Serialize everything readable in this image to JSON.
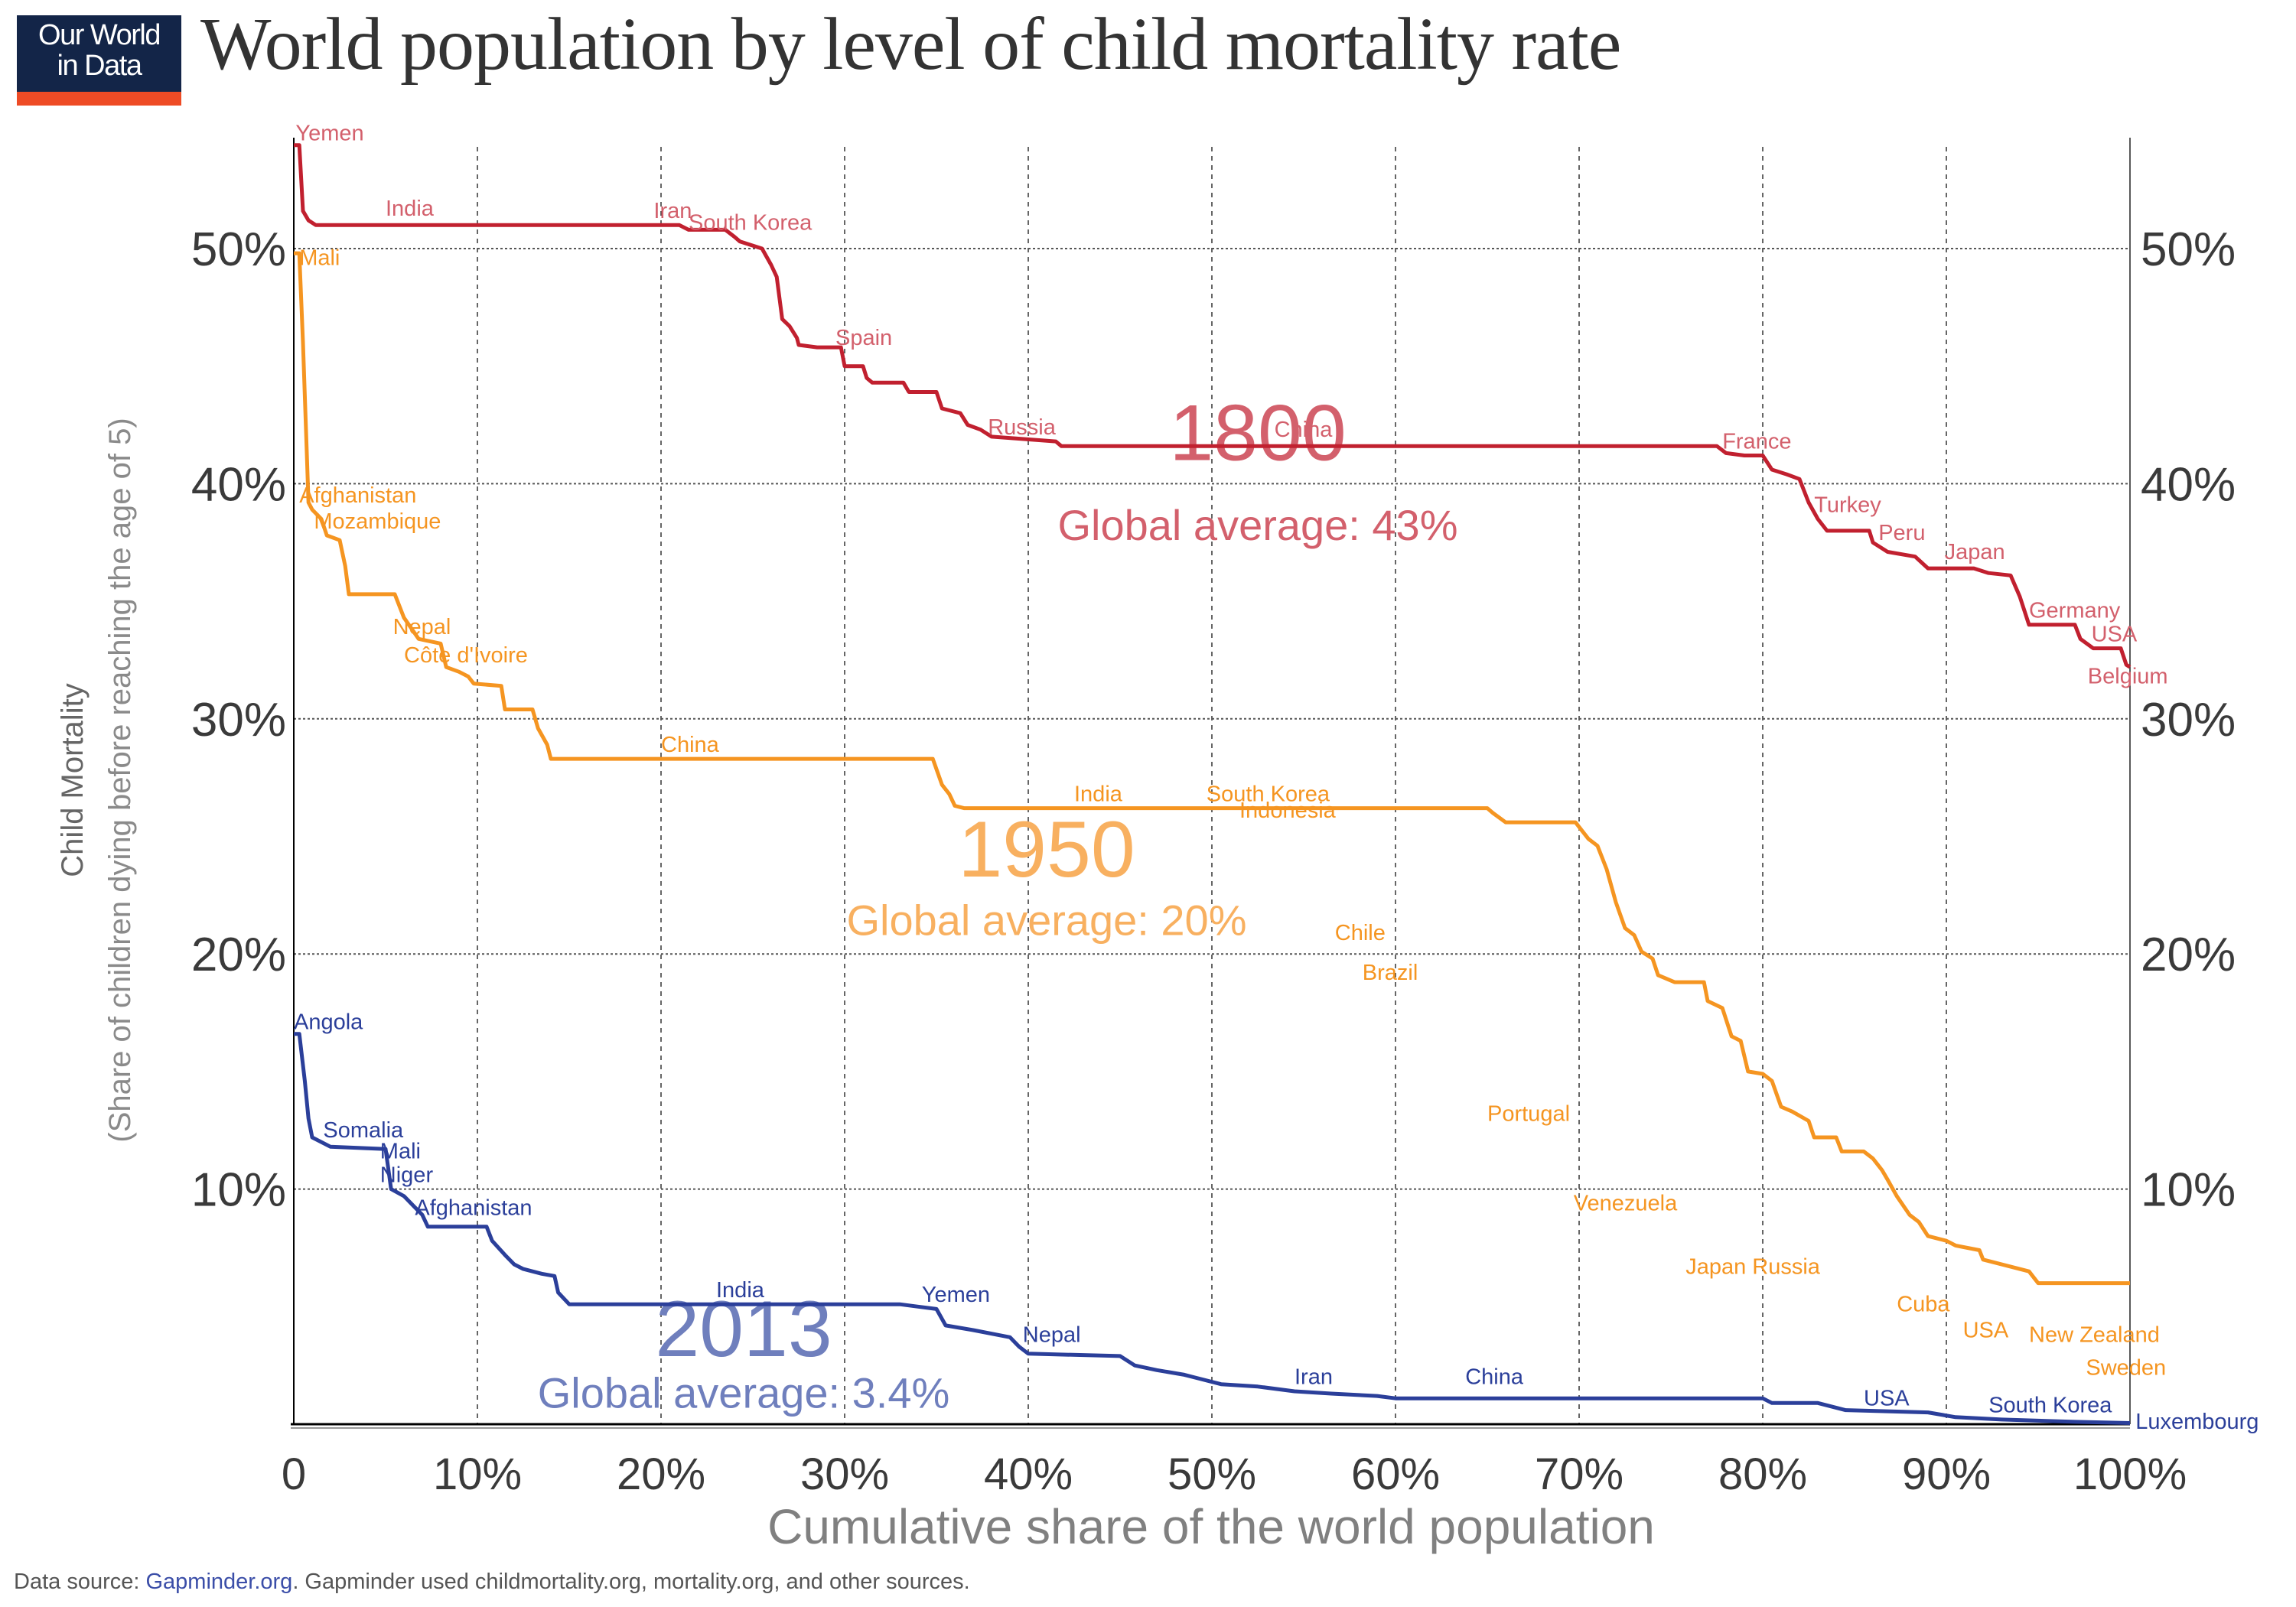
{
  "logo": {
    "line1": "Our World",
    "line2": "in Data"
  },
  "title": "World population by level of child mortality rate",
  "footer": {
    "prefix": "Data source: ",
    "link": "Gapminder.org",
    "suffix": ". Gapminder used childmortality.org, mortality.org, and other sources."
  },
  "colors": {
    "y1800": "#c1202f",
    "y1800_label": "#d3606c",
    "y1950": "#f59521",
    "y1950_label": "#f8b060",
    "y2013": "#2b3f9a",
    "y2013_label": "#6f7fbd",
    "grid": "#555555",
    "axis_text": "#3a3a3a",
    "axis_title": "#808080",
    "logo_bg": "#132548",
    "logo_bar": "#ee4b25"
  },
  "chart_data": {
    "type": "line",
    "title": "World population by level of child mortality rate",
    "xlabel": "Cumulative share of the world population",
    "ylabel": "Child Mortality",
    "ylabel_sub": "(Share of children dying before reaching the age of 5)",
    "xlim": [
      0,
      100
    ],
    "ylim": [
      0,
      55
    ],
    "x_ticks": [
      0,
      10,
      20,
      30,
      40,
      50,
      60,
      70,
      80,
      90,
      100
    ],
    "x_tick_labels": [
      "0",
      "10%",
      "20%",
      "30%",
      "40%",
      "50%",
      "60%",
      "70%",
      "80%",
      "90%",
      "100%"
    ],
    "y_ticks": [
      10,
      20,
      30,
      40,
      50
    ],
    "y_tick_labels": [
      "10%",
      "20%",
      "30%",
      "40%",
      "50%"
    ],
    "grid": true,
    "series": [
      {
        "name": "1800",
        "color_key": "y1800",
        "annotation": {
          "year": "1800",
          "avg": "Global average: 43%",
          "year_at": [
            52.5,
            41.0
          ],
          "avg_at": [
            52.5,
            37.6
          ]
        },
        "points": [
          [
            0,
            54.4
          ],
          [
            0.3,
            54.4
          ],
          [
            0.5,
            51.6
          ],
          [
            0.8,
            51.2
          ],
          [
            1.2,
            51.0
          ],
          [
            21.0,
            51.0
          ],
          [
            21.5,
            50.8
          ],
          [
            23.5,
            50.8
          ],
          [
            24.0,
            50.5
          ],
          [
            24.3,
            50.3
          ],
          [
            25.5,
            50.0
          ],
          [
            26.0,
            49.3
          ],
          [
            26.3,
            48.8
          ],
          [
            26.6,
            47.0
          ],
          [
            27.0,
            46.7
          ],
          [
            27.4,
            46.2
          ],
          [
            27.5,
            45.9
          ],
          [
            28.5,
            45.8
          ],
          [
            29.8,
            45.8
          ],
          [
            30.0,
            45.0
          ],
          [
            31.0,
            45.0
          ],
          [
            31.2,
            44.5
          ],
          [
            31.5,
            44.3
          ],
          [
            33.2,
            44.3
          ],
          [
            33.5,
            43.9
          ],
          [
            35.0,
            43.9
          ],
          [
            35.3,
            43.2
          ],
          [
            36.3,
            43.0
          ],
          [
            36.7,
            42.5
          ],
          [
            37.4,
            42.3
          ],
          [
            38.0,
            42.0
          ],
          [
            41.5,
            41.8
          ],
          [
            41.8,
            41.6
          ],
          [
            77.5,
            41.6
          ],
          [
            78.0,
            41.3
          ],
          [
            79.0,
            41.2
          ],
          [
            80.0,
            41.2
          ],
          [
            80.5,
            40.6
          ],
          [
            81.3,
            40.4
          ],
          [
            82.0,
            40.2
          ],
          [
            82.5,
            39.2
          ],
          [
            83.0,
            38.5
          ],
          [
            83.5,
            38.0
          ],
          [
            85.8,
            38.0
          ],
          [
            86.0,
            37.5
          ],
          [
            86.8,
            37.1
          ],
          [
            88.3,
            36.9
          ],
          [
            89.0,
            36.4
          ],
          [
            91.5,
            36.4
          ],
          [
            92.3,
            36.2
          ],
          [
            93.5,
            36.1
          ],
          [
            94.0,
            35.2
          ],
          [
            94.5,
            34.0
          ],
          [
            97.0,
            34.0
          ],
          [
            97.3,
            33.4
          ],
          [
            98.0,
            33.0
          ],
          [
            99.5,
            33.0
          ],
          [
            99.8,
            32.3
          ],
          [
            100,
            32.2
          ]
        ],
        "labels": [
          {
            "text": "Yemen",
            "x": 0.1,
            "y": 54.6
          },
          {
            "text": "India",
            "x": 5.0,
            "y": 51.4
          },
          {
            "text": "Iran",
            "x": 19.6,
            "y": 51.3
          },
          {
            "text": "South Korea",
            "x": 21.5,
            "y": 50.8
          },
          {
            "text": "Spain",
            "x": 29.5,
            "y": 45.9
          },
          {
            "text": "Russia",
            "x": 37.8,
            "y": 42.1
          },
          {
            "text": "China",
            "x": 53.4,
            "y": 42.0
          },
          {
            "text": "France",
            "x": 77.8,
            "y": 41.5
          },
          {
            "text": "Turkey",
            "x": 82.8,
            "y": 38.8
          },
          {
            "text": "Peru",
            "x": 86.3,
            "y": 37.6
          },
          {
            "text": "Japan",
            "x": 89.9,
            "y": 36.8
          },
          {
            "text": "Germany",
            "x": 94.5,
            "y": 34.3
          },
          {
            "text": "USA",
            "x": 97.9,
            "y": 33.3
          },
          {
            "text": "Belgium",
            "x": 97.7,
            "y": 31.5
          }
        ]
      },
      {
        "name": "1950",
        "color_key": "y1950",
        "annotation": {
          "year": "1950",
          "avg": "Global average: 20%",
          "year_at": [
            41.0,
            23.3
          ],
          "avg_at": [
            41.0,
            20.8
          ]
        },
        "points": [
          [
            0,
            49.8
          ],
          [
            0.3,
            49.8
          ],
          [
            0.5,
            46.0
          ],
          [
            0.7,
            41.5
          ],
          [
            0.8,
            39.2
          ],
          [
            1.0,
            38.9
          ],
          [
            1.5,
            38.5
          ],
          [
            1.8,
            37.8
          ],
          [
            2.5,
            37.6
          ],
          [
            2.8,
            36.5
          ],
          [
            3.0,
            35.3
          ],
          [
            5.5,
            35.3
          ],
          [
            6.0,
            34.3
          ],
          [
            6.8,
            33.4
          ],
          [
            8.0,
            33.2
          ],
          [
            8.3,
            32.2
          ],
          [
            9.0,
            32.0
          ],
          [
            9.5,
            31.8
          ],
          [
            9.8,
            31.5
          ],
          [
            11.3,
            31.4
          ],
          [
            11.5,
            30.4
          ],
          [
            13.0,
            30.4
          ],
          [
            13.3,
            29.6
          ],
          [
            13.8,
            28.9
          ],
          [
            14.0,
            28.3
          ],
          [
            34.8,
            28.3
          ],
          [
            35.3,
            27.2
          ],
          [
            35.7,
            26.8
          ],
          [
            36.0,
            26.3
          ],
          [
            36.5,
            26.2
          ],
          [
            65.0,
            26.2
          ],
          [
            65.3,
            26.0
          ],
          [
            66.0,
            25.6
          ],
          [
            67.5,
            25.6
          ],
          [
            69.8,
            25.6
          ],
          [
            70.5,
            24.9
          ],
          [
            71.0,
            24.6
          ],
          [
            71.5,
            23.6
          ],
          [
            72.0,
            22.2
          ],
          [
            72.5,
            21.1
          ],
          [
            73.0,
            20.8
          ],
          [
            73.4,
            20.1
          ],
          [
            74.0,
            19.8
          ],
          [
            74.3,
            19.1
          ],
          [
            75.2,
            18.8
          ],
          [
            76.8,
            18.8
          ],
          [
            77.0,
            18.0
          ],
          [
            77.8,
            17.7
          ],
          [
            78.3,
            16.5
          ],
          [
            78.8,
            16.3
          ],
          [
            79.2,
            15.0
          ],
          [
            80.0,
            14.9
          ],
          [
            80.5,
            14.6
          ],
          [
            81.0,
            13.5
          ],
          [
            81.6,
            13.3
          ],
          [
            82.5,
            12.9
          ],
          [
            82.8,
            12.2
          ],
          [
            84.0,
            12.2
          ],
          [
            84.3,
            11.6
          ],
          [
            85.5,
            11.6
          ],
          [
            86.0,
            11.3
          ],
          [
            86.5,
            10.8
          ],
          [
            86.8,
            10.4
          ],
          [
            87.3,
            9.7
          ],
          [
            88.0,
            8.9
          ],
          [
            88.5,
            8.6
          ],
          [
            89.0,
            8.0
          ],
          [
            90.0,
            7.8
          ],
          [
            90.5,
            7.6
          ],
          [
            91.8,
            7.4
          ],
          [
            92.0,
            7.0
          ],
          [
            94.5,
            6.5
          ],
          [
            95.0,
            6.0
          ],
          [
            100.0,
            6.0
          ]
        ],
        "labels": [
          {
            "text": "Mali",
            "x": 0.3,
            "y": 49.3
          },
          {
            "text": "Afghanistan",
            "x": 0.3,
            "y": 39.2
          },
          {
            "text": "Mozambique",
            "x": 1.1,
            "y": 38.1
          },
          {
            "text": "Nepal",
            "x": 5.4,
            "y": 33.6
          },
          {
            "text": "Côte d'Ivoire",
            "x": 6.0,
            "y": 32.4
          },
          {
            "text": "China",
            "x": 20.0,
            "y": 28.6
          },
          {
            "text": "India",
            "x": 42.5,
            "y": 26.5
          },
          {
            "text": "South Korea",
            "x": 49.7,
            "y": 26.5
          },
          {
            "text": "Indonesia",
            "x": 51.5,
            "y": 25.8
          },
          {
            "text": "Chile",
            "x": 56.7,
            "y": 20.6
          },
          {
            "text": "Brazil",
            "x": 58.2,
            "y": 18.9
          },
          {
            "text": "Portugal",
            "x": 65.0,
            "y": 12.9
          },
          {
            "text": "Venezuela",
            "x": 69.7,
            "y": 9.1
          },
          {
            "text": "Japan Russia",
            "x": 75.8,
            "y": 6.4
          },
          {
            "text": "Cuba",
            "x": 87.3,
            "y": 4.8
          },
          {
            "text": "USA",
            "x": 90.9,
            "y": 3.7
          },
          {
            "text": "New Zealand",
            "x": 94.5,
            "y": 3.5
          },
          {
            "text": "Sweden",
            "x": 97.6,
            "y": 2.1
          }
        ]
      },
      {
        "name": "2013",
        "color_key": "y2013",
        "annotation": {
          "year": "2013",
          "avg": "Global average: 3.4%",
          "year_at": [
            24.5,
            2.9
          ],
          "avg_at": [
            24.5,
            0.7
          ]
        },
        "points": [
          [
            0,
            16.6
          ],
          [
            0.3,
            16.6
          ],
          [
            0.6,
            14.6
          ],
          [
            0.8,
            13.0
          ],
          [
            1.0,
            12.2
          ],
          [
            2.0,
            11.8
          ],
          [
            5.0,
            11.7
          ],
          [
            5.3,
            10.0
          ],
          [
            6.0,
            9.7
          ],
          [
            6.5,
            9.3
          ],
          [
            7.0,
            8.9
          ],
          [
            7.3,
            8.4
          ],
          [
            10.5,
            8.4
          ],
          [
            10.8,
            7.8
          ],
          [
            11.5,
            7.2
          ],
          [
            12.0,
            6.8
          ],
          [
            12.5,
            6.6
          ],
          [
            13.5,
            6.4
          ],
          [
            14.2,
            6.3
          ],
          [
            14.4,
            5.6
          ],
          [
            15.0,
            5.1
          ],
          [
            33.0,
            5.1
          ],
          [
            34.0,
            5.0
          ],
          [
            35.0,
            4.9
          ],
          [
            35.5,
            4.2
          ],
          [
            37.0,
            4.0
          ],
          [
            39.0,
            3.7
          ],
          [
            39.5,
            3.3
          ],
          [
            40.0,
            3.0
          ],
          [
            45.0,
            2.9
          ],
          [
            45.8,
            2.5
          ],
          [
            47.0,
            2.3
          ],
          [
            48.5,
            2.1
          ],
          [
            49.0,
            2.0
          ],
          [
            50.5,
            1.7
          ],
          [
            52.5,
            1.6
          ],
          [
            54.5,
            1.4
          ],
          [
            56.5,
            1.3
          ],
          [
            59.0,
            1.2
          ],
          [
            60.0,
            1.1
          ],
          [
            80.0,
            1.1
          ],
          [
            80.5,
            0.9
          ],
          [
            83.0,
            0.9
          ],
          [
            84.5,
            0.6
          ],
          [
            89.0,
            0.5
          ],
          [
            90.5,
            0.3
          ],
          [
            93.0,
            0.2
          ],
          [
            97.0,
            0.1
          ],
          [
            100.0,
            0.05
          ]
        ],
        "labels": [
          {
            "text": "Angola",
            "x": 0.0,
            "y": 16.8
          },
          {
            "text": "Somalia",
            "x": 1.6,
            "y": 12.2
          },
          {
            "text": "Mali",
            "x": 4.7,
            "y": 11.3
          },
          {
            "text": "Niger",
            "x": 4.7,
            "y": 10.3
          },
          {
            "text": "Afghanistan",
            "x": 6.6,
            "y": 8.9
          },
          {
            "text": "India",
            "x": 23.0,
            "y": 5.4
          },
          {
            "text": "Yemen",
            "x": 34.2,
            "y": 5.2
          },
          {
            "text": "Nepal",
            "x": 39.7,
            "y": 3.5
          },
          {
            "text": "Iran",
            "x": 54.5,
            "y": 1.7
          },
          {
            "text": "China",
            "x": 63.8,
            "y": 1.7
          },
          {
            "text": "USA",
            "x": 85.5,
            "y": 0.8
          },
          {
            "text": "South Korea",
            "x": 92.3,
            "y": 0.5
          },
          {
            "text": "Luxembourg",
            "x": 100.3,
            "y": -0.2
          }
        ]
      }
    ]
  }
}
